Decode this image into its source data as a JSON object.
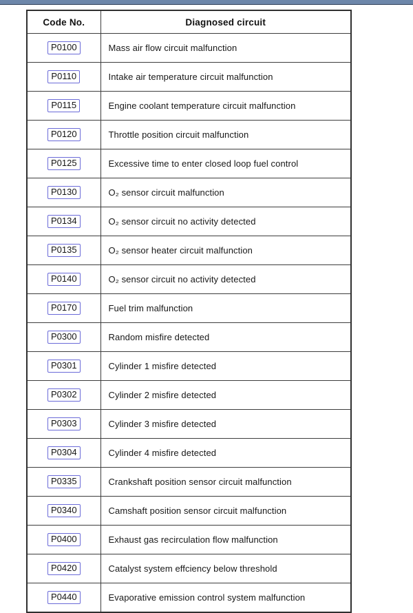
{
  "page": {
    "top_bar_color": "#6d87aa",
    "top_bar_edge_color": "#2e3e58",
    "background_color": "#ffffff"
  },
  "colors": {
    "table_border": "#3c3c3c",
    "code_link_border": "#6a6ad8",
    "text": "#1a1a1a"
  },
  "table": {
    "headers": [
      "Code No.",
      "Diagnosed circuit"
    ],
    "rows": [
      {
        "code": "P0100",
        "circuit": "Mass air flow circuit malfunction"
      },
      {
        "code": "P0110",
        "circuit": "Intake air temperature circuit malfunction"
      },
      {
        "code": "P0115",
        "circuit": "Engine coolant temperature circuit malfunction"
      },
      {
        "code": "P0120",
        "circuit": "Throttle position circuit malfunction"
      },
      {
        "code": "P0125",
        "circuit": "Excessive time to enter closed loop fuel control"
      },
      {
        "code": "P0130",
        "circuit": "O₂ sensor circuit malfunction"
      },
      {
        "code": "P0134",
        "circuit": "O₂ sensor circuit no activity detected"
      },
      {
        "code": "P0135",
        "circuit": "O₂ sensor heater circuit malfunction"
      },
      {
        "code": "P0140",
        "circuit": "O₂ sensor circuit no activity detected"
      },
      {
        "code": "P0170",
        "circuit": "Fuel trim malfunction"
      },
      {
        "code": "P0300",
        "circuit": "Random misfire detected"
      },
      {
        "code": "P0301",
        "circuit": "Cylinder 1 misfire detected"
      },
      {
        "code": "P0302",
        "circuit": "Cylinder 2 misfire detected"
      },
      {
        "code": "P0303",
        "circuit": "Cylinder 3 misfire detected"
      },
      {
        "code": "P0304",
        "circuit": "Cylinder 4 misfire detected"
      },
      {
        "code": "P0335",
        "circuit": "Crankshaft position sensor circuit malfunction"
      },
      {
        "code": "P0340",
        "circuit": "Camshaft position sensor circuit malfunction"
      },
      {
        "code": "P0400",
        "circuit": "Exhaust gas recirculation flow malfunction"
      },
      {
        "code": "P0420",
        "circuit": "Catalyst system effciency below threshold"
      },
      {
        "code": "P0440",
        "circuit": "Evaporative emission control system malfunction"
      }
    ]
  }
}
